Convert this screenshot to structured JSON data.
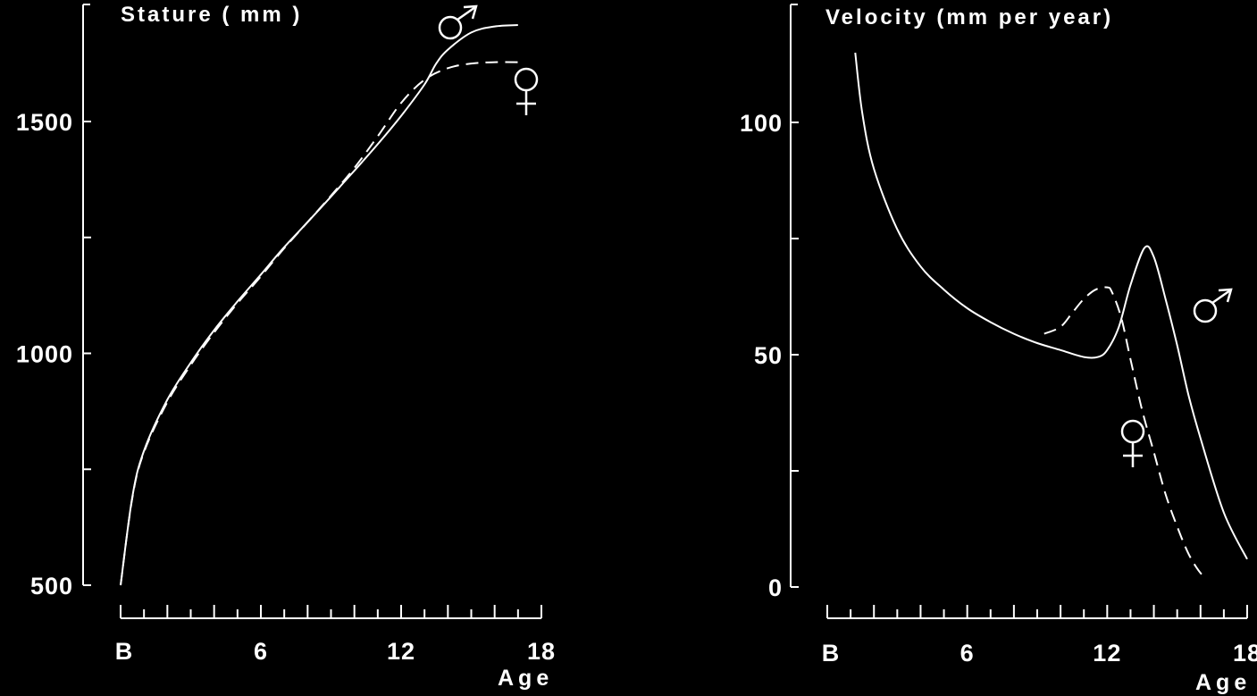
{
  "chart_data": [
    {
      "type": "line",
      "title": "Stature ( mm )",
      "xlabel": "Age",
      "ylabel": "",
      "xlim": [
        0,
        18
      ],
      "ylim": [
        500,
        1700
      ],
      "x_ticks": [
        0,
        1,
        2,
        3,
        4,
        5,
        6,
        7,
        8,
        9,
        10,
        11,
        12,
        13,
        14,
        15,
        16,
        17,
        18
      ],
      "x_tick_labels": [
        {
          "x": 0,
          "label": "B"
        },
        {
          "x": 6,
          "label": "6"
        },
        {
          "x": 12,
          "label": "12"
        },
        {
          "x": 18,
          "label": "18"
        }
      ],
      "y_ticks": [
        500,
        750,
        1000,
        1250,
        1500
      ],
      "y_tick_labels": [
        {
          "y": 500,
          "label": "500"
        },
        {
          "y": 1000,
          "label": "1000"
        },
        {
          "y": 1500,
          "label": "1500"
        }
      ],
      "grid": false,
      "series": [
        {
          "name": "♂",
          "style": "solid",
          "x": [
            0,
            0.5,
            1,
            2,
            3,
            4,
            5,
            6,
            7,
            8,
            9,
            10,
            11,
            12,
            13,
            13.5,
            14,
            15,
            16,
            17
          ],
          "y": [
            500,
            690,
            790,
            900,
            980,
            1050,
            1112,
            1170,
            1229,
            1283,
            1338,
            1394,
            1451,
            1512,
            1580,
            1625,
            1655,
            1692,
            1705,
            1708
          ]
        },
        {
          "name": "♀",
          "style": "dashed",
          "x": [
            0,
            0.5,
            1,
            2,
            3,
            4,
            5,
            6,
            7,
            8,
            9,
            10,
            11,
            12,
            13,
            14,
            15,
            16,
            17
          ],
          "y": [
            500,
            688,
            787,
            895,
            975,
            1045,
            1108,
            1166,
            1227,
            1283,
            1340,
            1400,
            1468,
            1540,
            1590,
            1615,
            1625,
            1628,
            1628
          ]
        }
      ]
    },
    {
      "type": "line",
      "title": "Velocity  (mm per year)",
      "xlabel": "Age",
      "ylabel": "",
      "xlim": [
        0,
        18
      ],
      "ylim": [
        0,
        120
      ],
      "x_ticks": [
        0,
        1,
        2,
        3,
        4,
        5,
        6,
        7,
        8,
        9,
        10,
        11,
        12,
        13,
        14,
        15,
        16,
        17,
        18
      ],
      "x_tick_labels": [
        {
          "x": 0,
          "label": "B"
        },
        {
          "x": 6,
          "label": "6"
        },
        {
          "x": 12,
          "label": "12"
        },
        {
          "x": 18,
          "label": "18"
        }
      ],
      "y_ticks": [
        0,
        25,
        50,
        75,
        100
      ],
      "y_tick_labels": [
        {
          "y": 0,
          "label": "0"
        },
        {
          "y": 50,
          "label": "50"
        },
        {
          "y": 100,
          "label": "100"
        }
      ],
      "grid": false,
      "series": [
        {
          "name": "♂",
          "style": "solid",
          "x": [
            1.2,
            1.5,
            2,
            3,
            4,
            5,
            6,
            7,
            8,
            9,
            10,
            11,
            11.6,
            12,
            12.5,
            13,
            13.6,
            14,
            14.5,
            15,
            15.5,
            16,
            17,
            18
          ],
          "y": [
            115,
            102,
            90,
            77,
            69,
            64,
            60,
            57,
            54.5,
            52.5,
            51,
            49.5,
            49.5,
            51,
            56,
            65,
            73,
            71,
            62,
            52,
            41,
            32,
            16,
            6
          ]
        },
        {
          "name": "♀",
          "style": "dashed",
          "x": [
            9.3,
            10,
            10.5,
            11,
            11.5,
            12,
            12.2,
            12.6,
            13,
            13.5,
            14,
            14.5,
            15,
            15.5,
            16,
            16.3
          ],
          "y": [
            54.5,
            56,
            59,
            62,
            64,
            64.5,
            63.5,
            58,
            49,
            38,
            29,
            20,
            13,
            7,
            3,
            2
          ]
        }
      ]
    }
  ],
  "symbols": {
    "male": "♂",
    "female": "♀"
  }
}
